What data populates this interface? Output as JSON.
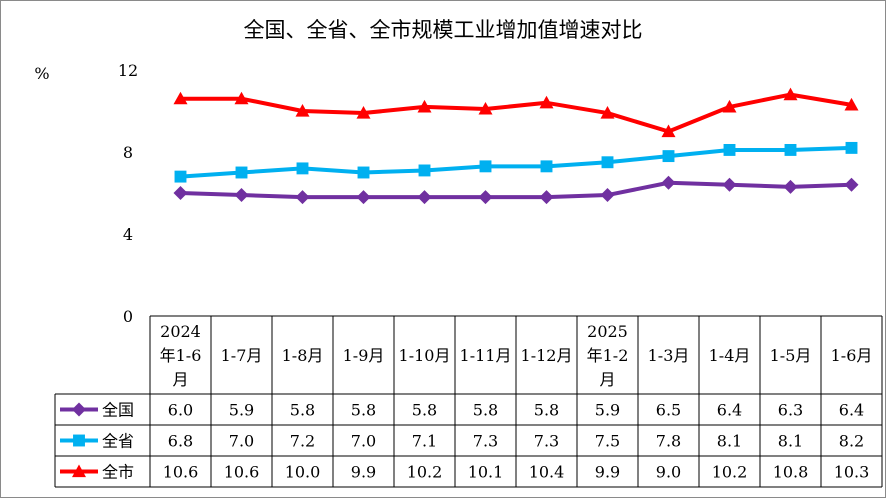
{
  "chart_data": {
    "type": "line",
    "title": "全国、全省、全市规模工业增加值增速对比",
    "ylabel": "%",
    "ylim": [
      0,
      12
    ],
    "yticks": [
      0,
      4,
      8,
      12
    ],
    "grid": false,
    "legend": "table-left",
    "categories": [
      "2024年1-6月",
      "1-7月",
      "1-8月",
      "1-9月",
      "1-10月",
      "1-11月",
      "1-12月",
      "2025年1-2月",
      "1-3月",
      "1-4月",
      "1-5月",
      "1-6月"
    ],
    "series": [
      {
        "name": "全国",
        "color": "#7030a0",
        "marker": "diamond",
        "values": [
          6.0,
          5.9,
          5.8,
          5.8,
          5.8,
          5.8,
          5.8,
          5.9,
          6.5,
          6.4,
          6.3,
          6.4
        ]
      },
      {
        "name": "全省",
        "color": "#00b0f0",
        "marker": "square",
        "values": [
          6.8,
          7.0,
          7.2,
          7.0,
          7.1,
          7.3,
          7.3,
          7.5,
          7.8,
          8.1,
          8.1,
          8.2
        ]
      },
      {
        "name": "全市",
        "color": "#ff0000",
        "marker": "triangle",
        "values": [
          10.6,
          10.6,
          10.0,
          9.9,
          10.2,
          10.1,
          10.4,
          9.9,
          9.0,
          10.2,
          10.8,
          10.3
        ]
      }
    ]
  }
}
